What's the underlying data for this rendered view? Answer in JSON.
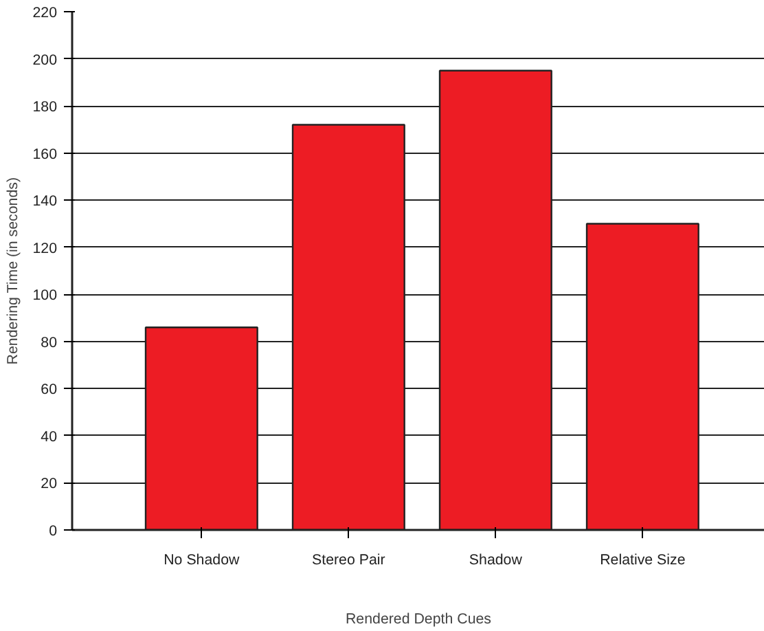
{
  "chart_data": {
    "type": "bar",
    "xlabel": "Rendered Depth Cues",
    "ylabel": "Rendering Time (in seconds)",
    "categories": [
      "No Shadow",
      "Stereo Pair",
      "Shadow",
      "Relative Size"
    ],
    "values": [
      86,
      172,
      195,
      130
    ],
    "color": "#ed1c24",
    "ylim": [
      0,
      220
    ],
    "yticks": [
      0,
      20,
      40,
      60,
      80,
      100,
      120,
      140,
      160,
      180,
      200,
      220
    ],
    "grid": "y"
  }
}
